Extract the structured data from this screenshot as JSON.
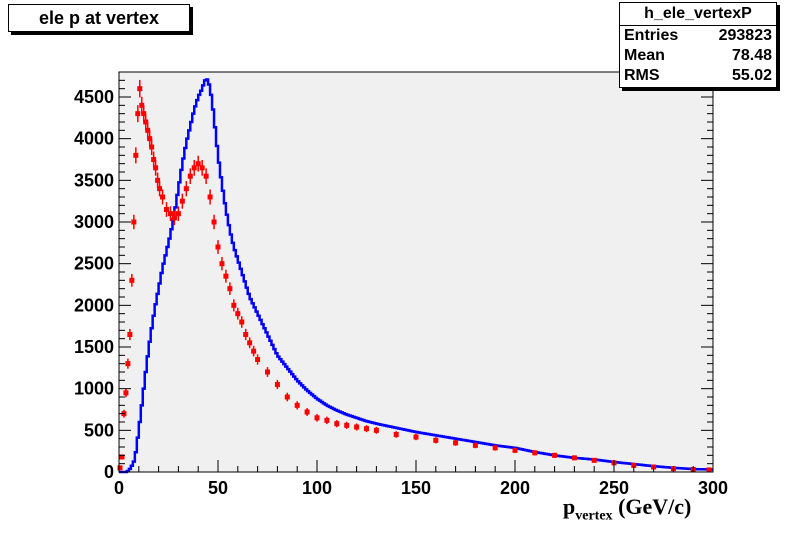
{
  "chart_data": {
    "type": "histogram",
    "title": "ele p at vertex",
    "xlabel": {
      "main": "p",
      "sub": "vertex",
      "rest": " (GeV/c)"
    },
    "ylabel": "",
    "xlim": [
      0,
      300
    ],
    "ylim": [
      0,
      4800
    ],
    "xticks": [
      0,
      50,
      100,
      150,
      200,
      250,
      300
    ],
    "yticks": [
      0,
      500,
      1000,
      1500,
      2000,
      2500,
      3000,
      3500,
      4000,
      4500
    ],
    "stats": {
      "name": "h_ele_vertexP",
      "rows": [
        {
          "label": "Entries",
          "value": "293823"
        },
        {
          "label": "Mean",
          "value": "78.48"
        },
        {
          "label": "RMS",
          "value": "55.02"
        }
      ]
    },
    "series": [
      {
        "style": "step",
        "color": "#0000ff",
        "x": [
          0,
          2,
          4,
          6,
          8,
          10,
          12,
          14,
          16,
          18,
          20,
          22,
          24,
          26,
          28,
          30,
          32,
          34,
          36,
          38,
          40,
          42,
          43,
          44,
          45,
          46,
          47,
          48,
          50,
          52,
          54,
          56,
          58,
          60,
          62,
          64,
          66,
          68,
          70,
          75,
          80,
          85,
          90,
          95,
          100,
          105,
          110,
          115,
          120,
          125,
          130,
          140,
          150,
          160,
          170,
          180,
          190,
          200,
          210,
          220,
          230,
          240,
          250,
          260,
          270,
          280,
          290,
          300
        ],
        "y": [
          0,
          0,
          0,
          50,
          150,
          500,
          900,
          1300,
          1650,
          1950,
          2200,
          2450,
          2650,
          2850,
          3100,
          3400,
          3700,
          3950,
          4150,
          4350,
          4500,
          4600,
          4680,
          4720,
          4700,
          4600,
          4450,
          4250,
          3800,
          3450,
          3150,
          2900,
          2700,
          2550,
          2400,
          2250,
          2100,
          2000,
          1900,
          1650,
          1400,
          1250,
          1100,
          980,
          880,
          800,
          740,
          690,
          650,
          610,
          580,
          530,
          480,
          440,
          400,
          360,
          320,
          290,
          240,
          200,
          170,
          150,
          120,
          95,
          70,
          50,
          35,
          30
        ]
      },
      {
        "style": "errorbar",
        "color": "#ff0000",
        "x": [
          0.5,
          1.5,
          2.5,
          3.5,
          4.5,
          5.5,
          6.5,
          7.5,
          8.5,
          9.5,
          10.5,
          11.5,
          12.5,
          13.5,
          14.5,
          15.5,
          16.5,
          17.5,
          18.5,
          19.5,
          20.5,
          22,
          24,
          26,
          28,
          30,
          32,
          34,
          36,
          38,
          40,
          42,
          44,
          46,
          48,
          50,
          52,
          54,
          56,
          58,
          60,
          62,
          64,
          66,
          68,
          70,
          75,
          80,
          85,
          90,
          95,
          100,
          105,
          110,
          115,
          120,
          125,
          130,
          140,
          150,
          160,
          170,
          180,
          190,
          200,
          210,
          220,
          230,
          240,
          250,
          260,
          270,
          280,
          290,
          298
        ],
        "y": [
          50,
          180,
          700,
          950,
          1300,
          1650,
          2300,
          3000,
          3800,
          4300,
          4600,
          4400,
          4300,
          4200,
          4100,
          4000,
          3900,
          3750,
          3650,
          3500,
          3400,
          3300,
          3150,
          3100,
          3050,
          3100,
          3250,
          3400,
          3550,
          3650,
          3700,
          3650,
          3550,
          3300,
          3000,
          2700,
          2500,
          2350,
          2200,
          2000,
          1900,
          1800,
          1650,
          1550,
          1450,
          1350,
          1200,
          1050,
          900,
          800,
          720,
          650,
          620,
          580,
          560,
          540,
          520,
          500,
          450,
          420,
          380,
          350,
          320,
          290,
          260,
          230,
          200,
          170,
          140,
          110,
          80,
          60,
          40,
          30,
          25
        ]
      }
    ]
  }
}
